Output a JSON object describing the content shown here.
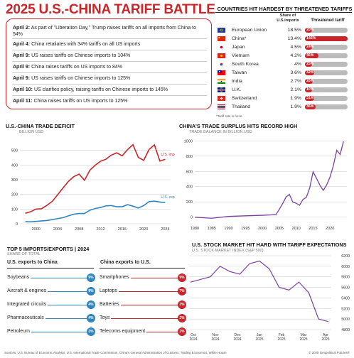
{
  "title": "2025 U.S.-CHINA TARIFF BATTLE",
  "timeline": [
    {
      "date": "April 2:",
      "text": "As part of \"Liberation Day,\" Trump raises tariffs on all imports from China to 54%"
    },
    {
      "date": "April 4:",
      "text": "China retaliates with 34% tariffs on all US imports"
    },
    {
      "date": "April 9:",
      "text": "US raises tariffs on Chinese imports to 104%"
    },
    {
      "date": "April 9:",
      "text": "China raises tariffs on US imports to 84%"
    },
    {
      "date": "April 9:",
      "text": "US raises tariffs on Chinese imports to 125%"
    },
    {
      "date": "April 10:",
      "text": "US clarifies policy, raising tariffs on Chinese imports to 145%"
    },
    {
      "date": "April 11:",
      "text": "China raises tariffs on US imports to 125%"
    }
  ],
  "countries": {
    "title": "COUNTRIES HIT HARDEST BY THREATENED TARIFFS",
    "share_header": "Share of U.S.imports",
    "tariff_header": "Threatened tariff",
    "note": "*Tariff rate in force.",
    "rows": [
      {
        "name": "European Union",
        "share": "18.5%",
        "tariff": "20%",
        "value": 20,
        "flag": "eu-flag-icon"
      },
      {
        "name": "China*",
        "share": "13.4%",
        "tariff": "145%",
        "value": 145,
        "flag": "china-flag-icon"
      },
      {
        "name": "Japan",
        "share": "4.5%",
        "tariff": "24%",
        "value": 24,
        "flag": "japan-flag-icon"
      },
      {
        "name": "Vietnam",
        "share": "4.2%",
        "tariff": "46%",
        "value": 46,
        "flag": "vietnam-flag-icon"
      },
      {
        "name": "South Korea",
        "share": "4%",
        "tariff": "25%",
        "value": 25,
        "flag": "south-korea-flag-icon"
      },
      {
        "name": "Taiwan",
        "share": "3.6%",
        "tariff": "32%",
        "value": 32,
        "flag": "taiwan-flag-icon"
      },
      {
        "name": "India",
        "share": "2.7%",
        "tariff": "26%",
        "value": 26,
        "flag": "india-flag-icon"
      },
      {
        "name": "U.K.",
        "share": "2.1%",
        "tariff": "10%",
        "value": 10,
        "flag": "uk-flag-icon"
      },
      {
        "name": "Switzerland",
        "share": "1.9%",
        "tariff": "31%",
        "value": 31,
        "flag": "switzerland-flag-icon"
      },
      {
        "name": "Thailand",
        "share": "1.9%",
        "tariff": "36%",
        "value": 36,
        "flag": "thailand-flag-icon"
      }
    ]
  },
  "top5": {
    "title": "TOP 5 IMPORTS/EXPORTS | 2024",
    "subtitle": "SHARE OF TOTAL",
    "us_header": "U.S. exports to China",
    "cn_header": "China exports to U.S.",
    "us_items": [
      {
        "label": "Soybeans",
        "pct": "9%"
      },
      {
        "label": "Aircraft & engines",
        "pct": "8%"
      },
      {
        "label": "Integrated circuits",
        "pct": "4%"
      },
      {
        "label": "Pharmaceuticals",
        "pct": "4%"
      },
      {
        "label": "Petroleum",
        "pct": "3%"
      }
    ],
    "cn_items": [
      {
        "label": "Smartphones",
        "pct": "9%"
      },
      {
        "label": "Laptops",
        "pct": "7%"
      },
      {
        "label": "Batteries",
        "pct": "3%"
      },
      {
        "label": "Toys",
        "pct": "2%"
      },
      {
        "label": "Telecoms equipment",
        "pct": "2%"
      }
    ]
  },
  "colors": {
    "red": "#c8262a",
    "blue": "#2e86c1",
    "purple": "#7b3fa0",
    "gray": "#bbbbbb"
  },
  "footer": {
    "sources": "Sources: U.S. Bureau of Economic Analysis, U.S. International Trade Commission, China's General Administration of Customs, Trading Economics, White House",
    "copyright": "© 2025 Geopolitical Futures®"
  },
  "chart_data": [
    {
      "type": "line",
      "title": "U.S.-CHINA TRADE DEFICIT",
      "ylabel": "BILLION USD",
      "xlim": [
        1997,
        2025
      ],
      "ylim": [
        0,
        600
      ],
      "yticks": [
        0,
        100,
        200,
        300,
        400,
        500
      ],
      "xticks": [
        2000,
        2004,
        2008,
        2012,
        2016,
        2020,
        2024
      ],
      "series": [
        {
          "name": "U.S. imports from China",
          "color": "#c8262a",
          "x": [
            1998,
            1999,
            2000,
            2001,
            2002,
            2003,
            2004,
            2005,
            2006,
            2007,
            2008,
            2009,
            2010,
            2011,
            2012,
            2013,
            2014,
            2015,
            2016,
            2017,
            2018,
            2019,
            2020,
            2021,
            2022,
            2023,
            2024
          ],
          "values": [
            71,
            82,
            100,
            102,
            125,
            152,
            197,
            243,
            288,
            321,
            338,
            296,
            365,
            399,
            426,
            440,
            468,
            483,
            463,
            505,
            539,
            452,
            432,
            506,
            537,
            427,
            439
          ]
        },
        {
          "name": "U.S. exports to China",
          "color": "#2e86c1",
          "x": [
            1998,
            1999,
            2000,
            2001,
            2002,
            2003,
            2004,
            2005,
            2006,
            2007,
            2008,
            2009,
            2010,
            2011,
            2012,
            2013,
            2014,
            2015,
            2016,
            2017,
            2018,
            2019,
            2020,
            2021,
            2022,
            2023,
            2024
          ],
          "values": [
            14,
            13,
            16,
            19,
            22,
            28,
            35,
            41,
            54,
            65,
            70,
            70,
            92,
            104,
            111,
            122,
            124,
            116,
            116,
            130,
            120,
            107,
            124,
            151,
            154,
            148,
            144
          ]
        }
      ]
    },
    {
      "type": "line",
      "title": "CHINA'S TRADE SURPLUS HITS RECORD HIGH",
      "ylabel": "TRADE BALANCE IN BILLION USD",
      "xlim": [
        1980,
        2025
      ],
      "ylim": [
        -50,
        1050
      ],
      "yticks": [
        0,
        200,
        400,
        600,
        800,
        1000
      ],
      "xticks": [
        1980,
        1985,
        1990,
        1995,
        2000,
        2005,
        2010,
        2015,
        2020
      ],
      "series": [
        {
          "name": "",
          "color": "#7b3fa0",
          "x": [
            1980,
            1985,
            1990,
            1995,
            2000,
            2004,
            2005,
            2006,
            2007,
            2008,
            2009,
            2010,
            2011,
            2012,
            2013,
            2014,
            2015,
            2016,
            2017,
            2018,
            2019,
            2020,
            2021,
            2022,
            2023,
            2024
          ],
          "values": [
            -2,
            -15,
            9,
            17,
            24,
            32,
            102,
            178,
            264,
            298,
            196,
            182,
            155,
            231,
            259,
            383,
            594,
            510,
            420,
            351,
            421,
            524,
            676,
            877,
            823,
            992
          ]
        }
      ]
    },
    {
      "type": "line",
      "title": "U.S. STOCK MARKET HIT HARD WITH TARIFF EXPECTATIONS",
      "ylabel": "U.S. STOCK MARKET INDEX (S&P 500)",
      "ylim": [
        4800,
        6200
      ],
      "yticks": [
        4800,
        5000,
        5200,
        5400,
        5600,
        5800,
        6000,
        6200
      ],
      "xticks": [
        "Oct 2024",
        "Nov 2024",
        "Dec 2024",
        "Jan 2025",
        "Feb 2025",
        "Mar 2025",
        "Apr 2025"
      ],
      "series": [
        {
          "name": "",
          "color": "#7b3fa0",
          "x": [
            "Sep 2024",
            "Oct 2024",
            "Nov 2024",
            "Dec 2024",
            "Dec 2024",
            "Jan 2025",
            "Jan 2025",
            "Feb 2025",
            "Feb 2025",
            "Mar 2025",
            "Mar 2025",
            "Mar 2025",
            "Apr 2025",
            "Apr 2025",
            "Apr 2025"
          ],
          "values": [
            5700,
            5750,
            5800,
            6000,
            5900,
            5850,
            6050,
            6100,
            5950,
            5600,
            5550,
            5700,
            5500,
            5000,
            4950
          ]
        }
      ]
    }
  ]
}
